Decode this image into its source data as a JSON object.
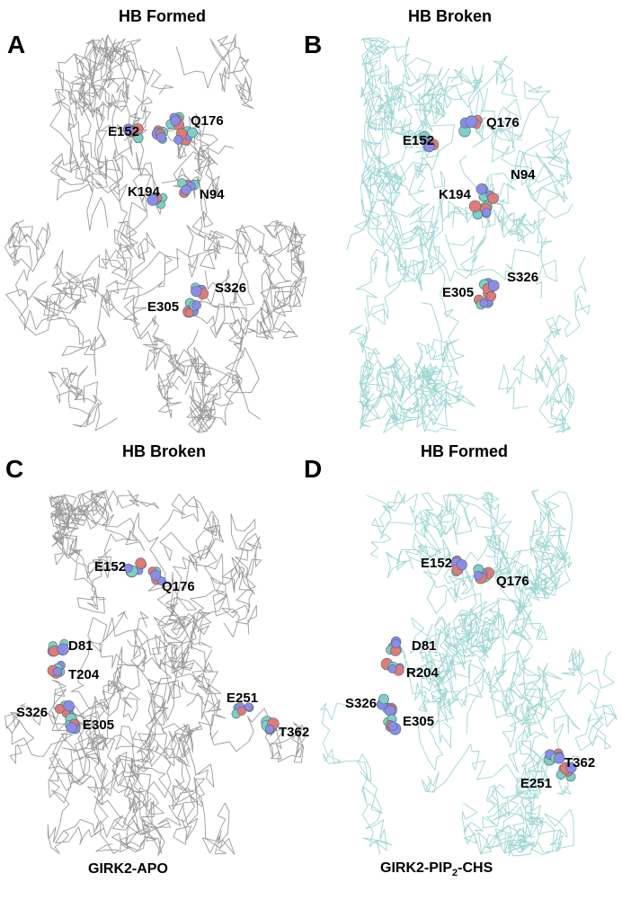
{
  "panels": [
    {
      "letter": "A",
      "title": "HB Formed",
      "color": "grey",
      "residues": [
        {
          "label": "E152"
        },
        {
          "label": "Q176"
        },
        {
          "label": "K194"
        },
        {
          "label": "N94"
        },
        {
          "label": "S326"
        },
        {
          "label": "E305"
        }
      ]
    },
    {
      "letter": "B",
      "title": "HB Broken",
      "color": "cyan",
      "residues": [
        {
          "label": "Q176"
        },
        {
          "label": "E152"
        },
        {
          "label": "N94"
        },
        {
          "label": "K194"
        },
        {
          "label": "S326"
        },
        {
          "label": "E305"
        }
      ]
    },
    {
      "letter": "C",
      "title": "HB Broken",
      "color": "grey",
      "residues": [
        {
          "label": "E152"
        },
        {
          "label": "Q176"
        },
        {
          "label": "D81"
        },
        {
          "label": "T204"
        },
        {
          "label": "S326"
        },
        {
          "label": "E305"
        },
        {
          "label": "E251"
        },
        {
          "label": "T362"
        }
      ]
    },
    {
      "letter": "D",
      "title": "HB Formed",
      "color": "cyan",
      "residues": [
        {
          "label": "E152"
        },
        {
          "label": "Q176"
        },
        {
          "label": "D81"
        },
        {
          "label": "R204"
        },
        {
          "label": "S326"
        },
        {
          "label": "E305"
        },
        {
          "label": "T362"
        },
        {
          "label": "E251"
        }
      ]
    }
  ],
  "captions": {
    "left": "GIRK2-APO",
    "right_prefix": "GIRK2-PIP",
    "right_sub": "2",
    "right_suffix": "-CHS"
  },
  "colors": {
    "grey_backbone": "#9a9a9a",
    "cyan_backbone": "#9fd6d3",
    "atom_carbon": "#7fcfc6",
    "atom_oxygen": "#e07a78",
    "atom_nitrogen": "#8c8ce8"
  }
}
